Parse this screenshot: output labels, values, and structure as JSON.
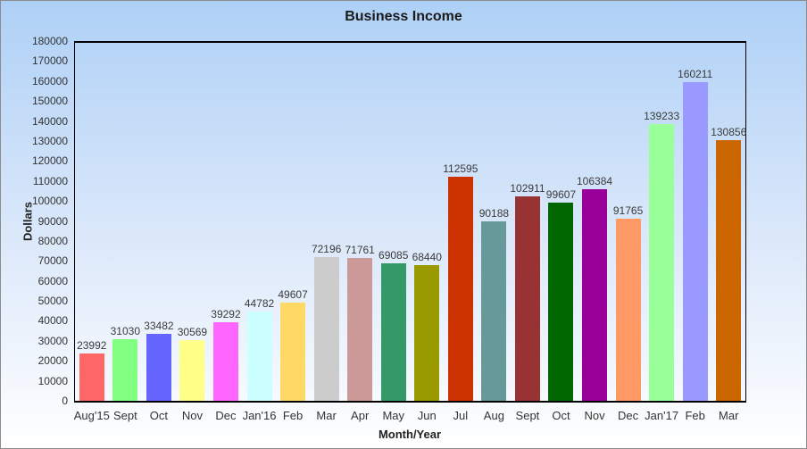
{
  "window": {
    "title": "Business Income"
  },
  "chart_data": {
    "type": "bar",
    "title": "Business Income",
    "xlabel": "Month/Year",
    "ylabel": "Dollars",
    "ylim": [
      0,
      180000
    ],
    "ytick_step": 10000,
    "grid": false,
    "legend": "none",
    "categories": [
      "Aug'15",
      "Sept",
      "Oct",
      "Nov",
      "Dec",
      "Jan'16",
      "Feb",
      "Mar",
      "Apr",
      "May",
      "Jun",
      "Jul",
      "Aug",
      "Sept",
      "Oct",
      "Nov",
      "Dec",
      "Jan'17",
      "Feb",
      "Mar"
    ],
    "values": [
      23992,
      31030,
      33482,
      30569,
      39292,
      44782,
      49607,
      72196,
      71761,
      69085,
      68440,
      112595,
      90188,
      102911,
      99607,
      106384,
      91765,
      139233,
      160211,
      130856
    ],
    "bar_colors": [
      "#ff6666",
      "#80ff80",
      "#6666ff",
      "#ffff88",
      "#ff66ff",
      "#ccffff",
      "#ffd966",
      "#cccccc",
      "#cc9999",
      "#339966",
      "#999900",
      "#cc3300",
      "#669999",
      "#993333",
      "#006600",
      "#990099",
      "#ff9966",
      "#99ff99",
      "#9999ff",
      "#cc6600"
    ],
    "background_gradient": [
      "#aed0f6",
      "#ffffff"
    ],
    "axis_color": "#000000",
    "label_color": "#333333"
  }
}
